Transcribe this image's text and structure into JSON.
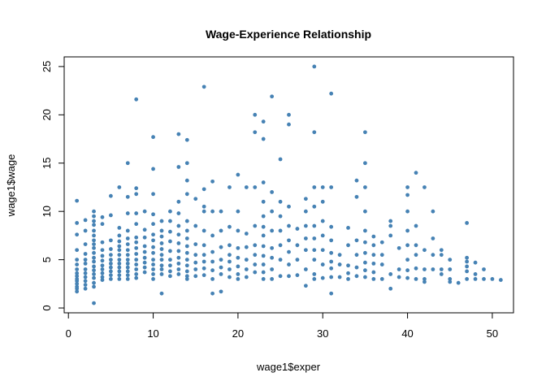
{
  "chart_data": {
    "type": "scatter",
    "title": "Wage-Experience Relationship",
    "xlabel": "wage1$exper",
    "ylabel": "wage1$wage",
    "xlim": [
      -0.5,
      52.5
    ],
    "ylim": [
      -0.5,
      26
    ],
    "xticks": [
      0,
      10,
      20,
      30,
      40,
      50
    ],
    "yticks": [
      0,
      5,
      10,
      15,
      20,
      25
    ],
    "grid": false,
    "point_color": "#4682B4",
    "points": [
      [
        1,
        11.1
      ],
      [
        1,
        8.8
      ],
      [
        1,
        7.6
      ],
      [
        1,
        6.0
      ],
      [
        1,
        5.0
      ],
      [
        1,
        4.5
      ],
      [
        1,
        4.0
      ],
      [
        1,
        3.6
      ],
      [
        1,
        3.3
      ],
      [
        1,
        3.0
      ],
      [
        1,
        2.8
      ],
      [
        1,
        2.5
      ],
      [
        1,
        2.2
      ],
      [
        1,
        2.0
      ],
      [
        1,
        1.7
      ],
      [
        2,
        9.1
      ],
      [
        2,
        8.0
      ],
      [
        2,
        6.6
      ],
      [
        2,
        5.6
      ],
      [
        2,
        5.0
      ],
      [
        2,
        4.6
      ],
      [
        2,
        4.0
      ],
      [
        2,
        3.6
      ],
      [
        2,
        3.2
      ],
      [
        2,
        2.8
      ],
      [
        2,
        2.4
      ],
      [
        2,
        2.0
      ],
      [
        3,
        10.0
      ],
      [
        3,
        9.5
      ],
      [
        3,
        9.0
      ],
      [
        3,
        8.6
      ],
      [
        3,
        8.0
      ],
      [
        3,
        7.5
      ],
      [
        3,
        7.0
      ],
      [
        3,
        6.6
      ],
      [
        3,
        6.2
      ],
      [
        3,
        5.7
      ],
      [
        3,
        5.2
      ],
      [
        3,
        4.8
      ],
      [
        3,
        4.3
      ],
      [
        3,
        3.9
      ],
      [
        3,
        3.5
      ],
      [
        3,
        3.1
      ],
      [
        3,
        2.6
      ],
      [
        3,
        2.2
      ],
      [
        3,
        0.5
      ],
      [
        4,
        9.4
      ],
      [
        4,
        8.7
      ],
      [
        4,
        6.8
      ],
      [
        4,
        6.0
      ],
      [
        4,
        5.4
      ],
      [
        4,
        4.9
      ],
      [
        4,
        4.4
      ],
      [
        4,
        4.0
      ],
      [
        4,
        3.6
      ],
      [
        4,
        3.2
      ],
      [
        4,
        2.9
      ],
      [
        5,
        11.6
      ],
      [
        5,
        9.6
      ],
      [
        5,
        7.0
      ],
      [
        5,
        6.1
      ],
      [
        5,
        5.5
      ],
      [
        5,
        5.0
      ],
      [
        5,
        4.6
      ],
      [
        5,
        4.2
      ],
      [
        5,
        3.8
      ],
      [
        5,
        3.4
      ],
      [
        5,
        3.0
      ],
      [
        6,
        12.5
      ],
      [
        6,
        8.3
      ],
      [
        6,
        7.5
      ],
      [
        6,
        6.9
      ],
      [
        6,
        6.4
      ],
      [
        6,
        6.0
      ],
      [
        6,
        5.5
      ],
      [
        6,
        5.0
      ],
      [
        6,
        4.6
      ],
      [
        6,
        4.2
      ],
      [
        6,
        3.8
      ],
      [
        6,
        3.4
      ],
      [
        6,
        3.0
      ],
      [
        7,
        15.0
      ],
      [
        7,
        11.5
      ],
      [
        7,
        9.8
      ],
      [
        7,
        8.0
      ],
      [
        7,
        7.2
      ],
      [
        7,
        6.6
      ],
      [
        7,
        6.0
      ],
      [
        7,
        5.5
      ],
      [
        7,
        5.0
      ],
      [
        7,
        4.6
      ],
      [
        7,
        4.2
      ],
      [
        7,
        3.8
      ],
      [
        7,
        3.4
      ],
      [
        7,
        3.0
      ],
      [
        8,
        21.6
      ],
      [
        8,
        12.4
      ],
      [
        8,
        11.8
      ],
      [
        8,
        9.8
      ],
      [
        8,
        8.7
      ],
      [
        8,
        7.3
      ],
      [
        8,
        6.8
      ],
      [
        8,
        6.2
      ],
      [
        8,
        5.6
      ],
      [
        8,
        5.0
      ],
      [
        8,
        4.5
      ],
      [
        8,
        4.0
      ],
      [
        8,
        3.5
      ],
      [
        8,
        3.1
      ],
      [
        9,
        10.0
      ],
      [
        9,
        8.1
      ],
      [
        9,
        7.3
      ],
      [
        9,
        6.4
      ],
      [
        9,
        5.8
      ],
      [
        9,
        5.2
      ],
      [
        9,
        4.7
      ],
      [
        9,
        4.2
      ],
      [
        9,
        3.7
      ],
      [
        10,
        17.7
      ],
      [
        10,
        14.4
      ],
      [
        10,
        11.8
      ],
      [
        10,
        9.7
      ],
      [
        10,
        8.7
      ],
      [
        10,
        7.6
      ],
      [
        10,
        7.0
      ],
      [
        10,
        6.3
      ],
      [
        10,
        5.7
      ],
      [
        10,
        5.0
      ],
      [
        10,
        4.5
      ],
      [
        10,
        4.0
      ],
      [
        10,
        3.5
      ],
      [
        10,
        3.0
      ],
      [
        11,
        9.0
      ],
      [
        11,
        8.0
      ],
      [
        11,
        7.4
      ],
      [
        11,
        6.7
      ],
      [
        11,
        6.1
      ],
      [
        11,
        5.5
      ],
      [
        11,
        5.0
      ],
      [
        11,
        4.4
      ],
      [
        11,
        4.0
      ],
      [
        11,
        3.5
      ],
      [
        11,
        1.5
      ],
      [
        12,
        10.0
      ],
      [
        12,
        9.0
      ],
      [
        12,
        7.9
      ],
      [
        12,
        6.9
      ],
      [
        12,
        5.9
      ],
      [
        12,
        5.0
      ],
      [
        12,
        4.4
      ],
      [
        12,
        3.8
      ],
      [
        12,
        3.3
      ],
      [
        13,
        18.0
      ],
      [
        13,
        14.6
      ],
      [
        13,
        11.0
      ],
      [
        13,
        9.8
      ],
      [
        13,
        8.5
      ],
      [
        13,
        7.6
      ],
      [
        13,
        6.7
      ],
      [
        13,
        5.9
      ],
      [
        13,
        5.2
      ],
      [
        13,
        4.6
      ],
      [
        13,
        4.0
      ],
      [
        13,
        3.5
      ],
      [
        14,
        17.4
      ],
      [
        14,
        15.0
      ],
      [
        14,
        13.2
      ],
      [
        14,
        11.8
      ],
      [
        14,
        9.0
      ],
      [
        14,
        8.0
      ],
      [
        14,
        7.2
      ],
      [
        14,
        6.4
      ],
      [
        14,
        5.7
      ],
      [
        14,
        5.0
      ],
      [
        14,
        4.4
      ],
      [
        14,
        3.8
      ],
      [
        14,
        3.3
      ],
      [
        14,
        3.0
      ],
      [
        15,
        11.3
      ],
      [
        15,
        8.5
      ],
      [
        15,
        6.6
      ],
      [
        15,
        5.5
      ],
      [
        15,
        4.7
      ],
      [
        15,
        4.0
      ],
      [
        15,
        3.3
      ],
      [
        16,
        22.9
      ],
      [
        16,
        12.3
      ],
      [
        16,
        10.5
      ],
      [
        16,
        10.0
      ],
      [
        16,
        8.0
      ],
      [
        16,
        6.5
      ],
      [
        16,
        5.5
      ],
      [
        16,
        4.8
      ],
      [
        16,
        4.1
      ],
      [
        16,
        3.4
      ],
      [
        17,
        13.1
      ],
      [
        17,
        10.0
      ],
      [
        17,
        7.5
      ],
      [
        17,
        5.8
      ],
      [
        17,
        4.8
      ],
      [
        17,
        3.9
      ],
      [
        17,
        3.0
      ],
      [
        17,
        1.5
      ],
      [
        18,
        10.0
      ],
      [
        18,
        8.0
      ],
      [
        18,
        6.3
      ],
      [
        18,
        5.0
      ],
      [
        18,
        4.2
      ],
      [
        18,
        3.5
      ],
      [
        18,
        1.7
      ],
      [
        19,
        12.5
      ],
      [
        19,
        8.4
      ],
      [
        19,
        6.5
      ],
      [
        19,
        5.5
      ],
      [
        19,
        4.8
      ],
      [
        19,
        4.0
      ],
      [
        19,
        3.2
      ],
      [
        20,
        13.8
      ],
      [
        20,
        10.0
      ],
      [
        20,
        8.0
      ],
      [
        20,
        6.2
      ],
      [
        20,
        5.2
      ],
      [
        20,
        4.3
      ],
      [
        20,
        3.5
      ],
      [
        20,
        3.0
      ],
      [
        21,
        12.5
      ],
      [
        21,
        7.7
      ],
      [
        21,
        6.3
      ],
      [
        21,
        5.0
      ],
      [
        21,
        4.0
      ],
      [
        21,
        3.2
      ],
      [
        22,
        20.0
      ],
      [
        22,
        18.2
      ],
      [
        22,
        12.5
      ],
      [
        22,
        8.5
      ],
      [
        22,
        6.5
      ],
      [
        22,
        5.5
      ],
      [
        22,
        4.5
      ],
      [
        22,
        3.7
      ],
      [
        23,
        19.3
      ],
      [
        23,
        17.5
      ],
      [
        23,
        13.0
      ],
      [
        23,
        11.0
      ],
      [
        23,
        9.5
      ],
      [
        23,
        8.4
      ],
      [
        23,
        7.5
      ],
      [
        23,
        6.4
      ],
      [
        23,
        5.4
      ],
      [
        23,
        4.5
      ],
      [
        23,
        3.7
      ],
      [
        23,
        3.0
      ],
      [
        24,
        21.9
      ],
      [
        24,
        12.0
      ],
      [
        24,
        10.0
      ],
      [
        24,
        8.0
      ],
      [
        24,
        6.2
      ],
      [
        24,
        5.2
      ],
      [
        24,
        4.0
      ],
      [
        24,
        3.0
      ],
      [
        25,
        15.4
      ],
      [
        25,
        11.0
      ],
      [
        25,
        9.5
      ],
      [
        25,
        8.0
      ],
      [
        25,
        6.5
      ],
      [
        25,
        5.0
      ],
      [
        25,
        3.3
      ],
      [
        26,
        20.0
      ],
      [
        26,
        19.0
      ],
      [
        26,
        10.5
      ],
      [
        26,
        8.5
      ],
      [
        26,
        7.0
      ],
      [
        26,
        5.8
      ],
      [
        26,
        4.5
      ],
      [
        26,
        3.3
      ],
      [
        27,
        8.2
      ],
      [
        27,
        6.5
      ],
      [
        27,
        5.0
      ],
      [
        27,
        3.4
      ],
      [
        28,
        11.3
      ],
      [
        28,
        10.0
      ],
      [
        28,
        8.5
      ],
      [
        28,
        7.2
      ],
      [
        28,
        6.0
      ],
      [
        28,
        4.0
      ],
      [
        28,
        2.3
      ],
      [
        29,
        25.0
      ],
      [
        29,
        18.2
      ],
      [
        29,
        12.5
      ],
      [
        29,
        10.5
      ],
      [
        29,
        8.5
      ],
      [
        29,
        7.2
      ],
      [
        29,
        6.0
      ],
      [
        29,
        5.0
      ],
      [
        29,
        3.5
      ],
      [
        29,
        3.0
      ],
      [
        30,
        12.5
      ],
      [
        30,
        11.0
      ],
      [
        30,
        9.0
      ],
      [
        30,
        7.5
      ],
      [
        30,
        6.0
      ],
      [
        30,
        4.5
      ],
      [
        30,
        3.1
      ],
      [
        31,
        22.2
      ],
      [
        31,
        12.5
      ],
      [
        31,
        8.4
      ],
      [
        31,
        7.0
      ],
      [
        31,
        5.7
      ],
      [
        31,
        4.8
      ],
      [
        31,
        4.1
      ],
      [
        31,
        3.2
      ],
      [
        31,
        1.5
      ],
      [
        32,
        5.5
      ],
      [
        32,
        4.5
      ],
      [
        32,
        3.2
      ],
      [
        33,
        8.3
      ],
      [
        33,
        6.5
      ],
      [
        33,
        4.4
      ],
      [
        33,
        3.6
      ],
      [
        33,
        3.0
      ],
      [
        34,
        13.2
      ],
      [
        34,
        11.5
      ],
      [
        34,
        7.0
      ],
      [
        34,
        5.5
      ],
      [
        34,
        4.2
      ],
      [
        34,
        3.3
      ],
      [
        35,
        18.2
      ],
      [
        35,
        15.0
      ],
      [
        35,
        12.5
      ],
      [
        35,
        10.0
      ],
      [
        35,
        8.0
      ],
      [
        35,
        6.8
      ],
      [
        35,
        5.7
      ],
      [
        35,
        4.7
      ],
      [
        35,
        3.9
      ],
      [
        35,
        3.2
      ],
      [
        36,
        7.4
      ],
      [
        36,
        6.5
      ],
      [
        36,
        5.5
      ],
      [
        36,
        4.6
      ],
      [
        36,
        3.7
      ],
      [
        36,
        3.0
      ],
      [
        37,
        6.8
      ],
      [
        37,
        5.5
      ],
      [
        37,
        4.5
      ],
      [
        37,
        3.0
      ],
      [
        38,
        9.0
      ],
      [
        38,
        8.5
      ],
      [
        38,
        7.5
      ],
      [
        38,
        3.5
      ],
      [
        38,
        2.0
      ],
      [
        39,
        6.2
      ],
      [
        39,
        4.0
      ],
      [
        39,
        3.2
      ],
      [
        40,
        12.5
      ],
      [
        40,
        11.7
      ],
      [
        40,
        10.0
      ],
      [
        40,
        8.0
      ],
      [
        40,
        6.5
      ],
      [
        40,
        5.0
      ],
      [
        40,
        3.9
      ],
      [
        40,
        3.1
      ],
      [
        41,
        14.0
      ],
      [
        41,
        8.5
      ],
      [
        41,
        6.5
      ],
      [
        41,
        5.5
      ],
      [
        41,
        4.1
      ],
      [
        41,
        3.0
      ],
      [
        42,
        12.5
      ],
      [
        42,
        6.0
      ],
      [
        42,
        4.0
      ],
      [
        42,
        3.0
      ],
      [
        42,
        2.7
      ],
      [
        43,
        10.0
      ],
      [
        43,
        7.2
      ],
      [
        43,
        5.5
      ],
      [
        43,
        4.0
      ],
      [
        44,
        6.0
      ],
      [
        44,
        5.5
      ],
      [
        44,
        4.0
      ],
      [
        44,
        3.5
      ],
      [
        45,
        5.0
      ],
      [
        45,
        4.0
      ],
      [
        45,
        3.0
      ],
      [
        45,
        2.7
      ],
      [
        46,
        2.6
      ],
      [
        47,
        8.8
      ],
      [
        47,
        5.2
      ],
      [
        47,
        4.8
      ],
      [
        47,
        4.3
      ],
      [
        47,
        3.8
      ],
      [
        47,
        3.0
      ],
      [
        48,
        4.7
      ],
      [
        48,
        3.5
      ],
      [
        48,
        3.0
      ],
      [
        49,
        4.0
      ],
      [
        49,
        3.0
      ],
      [
        50,
        3.0
      ],
      [
        51,
        2.9
      ]
    ]
  }
}
